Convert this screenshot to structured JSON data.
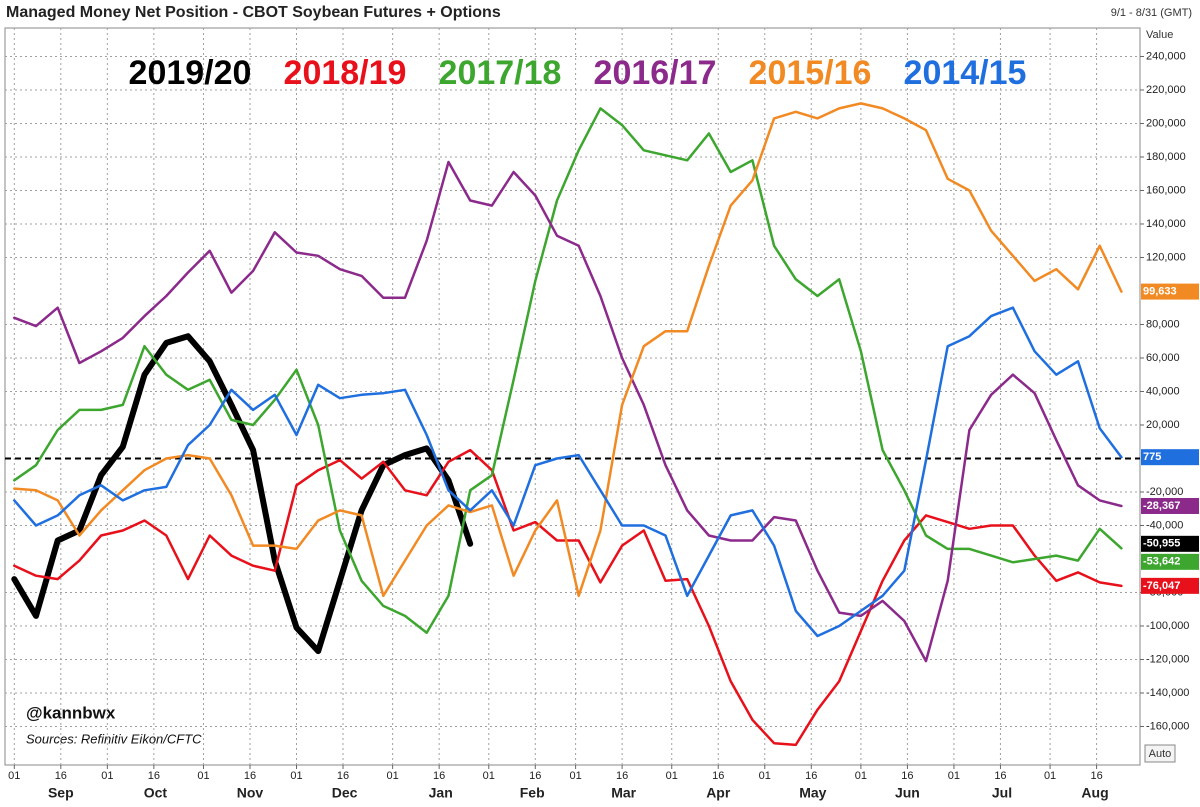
{
  "chart_data": {
    "type": "line",
    "title": "Managed Money Net Position - CBOT Soybean Futures + Options",
    "date_range": "9/1 - 8/31 (GMT)",
    "y_axis_label": "Value",
    "auto_button": "Auto",
    "handle": "@kannbwx",
    "source": "Sources: Refinitiv Eikon/CFTC",
    "xlim": [
      -3,
      363
    ],
    "ylim": [
      -183000,
      257000
    ],
    "reference_line": 0,
    "grid": true,
    "months": [
      "Sep",
      "Oct",
      "Nov",
      "Dec",
      "Jan",
      "Feb",
      "Mar",
      "Apr",
      "May",
      "Jun",
      "Jul",
      "Aug"
    ],
    "xticks": [
      {
        "value": 0,
        "label": "01"
      },
      {
        "value": 15,
        "label": "16"
      },
      {
        "value": 30,
        "label": "01"
      },
      {
        "value": 45,
        "label": "16"
      },
      {
        "value": 61,
        "label": "01"
      },
      {
        "value": 76,
        "label": "16"
      },
      {
        "value": 91,
        "label": "01"
      },
      {
        "value": 106,
        "label": "16"
      },
      {
        "value": 122,
        "label": "01"
      },
      {
        "value": 137,
        "label": "16"
      },
      {
        "value": 153,
        "label": "01"
      },
      {
        "value": 168,
        "label": "16"
      },
      {
        "value": 181,
        "label": "01"
      },
      {
        "value": 196,
        "label": "16"
      },
      {
        "value": 212,
        "label": "01"
      },
      {
        "value": 227,
        "label": "16"
      },
      {
        "value": 242,
        "label": "01"
      },
      {
        "value": 257,
        "label": "16"
      },
      {
        "value": 273,
        "label": "01"
      },
      {
        "value": 288,
        "label": "16"
      },
      {
        "value": 303,
        "label": "01"
      },
      {
        "value": 318,
        "label": "16"
      },
      {
        "value": 334,
        "label": "01"
      },
      {
        "value": 349,
        "label": "16"
      }
    ],
    "yticks": [
      {
        "value": 240000,
        "label": "240,000"
      },
      {
        "value": 220000,
        "label": "220,000"
      },
      {
        "value": 200000,
        "label": "200,000"
      },
      {
        "value": 180000,
        "label": "180,000"
      },
      {
        "value": 160000,
        "label": "160,000"
      },
      {
        "value": 140000,
        "label": "140,000"
      },
      {
        "value": 120000,
        "label": "120,000"
      },
      {
        "value": 80000,
        "label": "80,000"
      },
      {
        "value": 60000,
        "label": "60,000"
      },
      {
        "value": 40000,
        "label": "40,000"
      },
      {
        "value": 20000,
        "label": "20,000"
      },
      {
        "value": -20000,
        "label": "-20,000"
      },
      {
        "value": -40000,
        "label": "-40,000"
      },
      {
        "value": -80000,
        "label": "-80,000"
      },
      {
        "value": -100000,
        "label": "-100,000"
      },
      {
        "value": -120000,
        "label": "-120,000"
      },
      {
        "value": -140000,
        "label": "-140,000"
      },
      {
        "value": -160000,
        "label": "-160,000"
      }
    ],
    "x": [
      0,
      7,
      14,
      21,
      28,
      35,
      42,
      49,
      56,
      63,
      70,
      77,
      84,
      91,
      98,
      105,
      112,
      119,
      126,
      133,
      140,
      147,
      154,
      161,
      168,
      175,
      182,
      189,
      196,
      203,
      210,
      217,
      224,
      231,
      238,
      245,
      252,
      259,
      266,
      273,
      280,
      287,
      294,
      301,
      308,
      315,
      322,
      329,
      336,
      343,
      350,
      357
    ],
    "series": [
      {
        "name": "2019/20",
        "color": "#000000",
        "width": 6,
        "last_value_label": "-50,955",
        "values": [
          -72000,
          -94000,
          -49000,
          -43000,
          -10000,
          7000,
          50000,
          69000,
          73000,
          58000,
          32000,
          5000,
          -61000,
          -101000,
          -115000,
          -73000,
          -31000,
          -4000,
          2000,
          6000,
          -13000,
          -50955,
          null,
          null,
          null,
          null,
          null,
          null,
          null,
          null,
          null,
          null,
          null,
          null,
          null,
          null,
          null,
          null,
          null,
          null,
          null,
          null,
          null,
          null,
          null,
          null,
          null,
          null,
          null,
          null,
          null,
          null
        ]
      },
      {
        "name": "2018/19",
        "color": "#e8101a",
        "width": 2.5,
        "last_value_label": "-76,047",
        "values": [
          -64000,
          -70000,
          -72000,
          -61000,
          -46000,
          -43000,
          -37000,
          -46000,
          -72000,
          -46000,
          -58000,
          -64000,
          -67000,
          -16000,
          -7000,
          -1000,
          -12000,
          -2000,
          -19000,
          -22000,
          -2000,
          5000,
          -7000,
          -43000,
          -38000,
          -49000,
          -49000,
          -74000,
          -52000,
          -43000,
          -73000,
          -72000,
          -100000,
          -133000,
          -156000,
          -170000,
          -171000,
          -150000,
          -133000,
          -103000,
          -73000,
          -49000,
          -34000,
          -38000,
          -42000,
          -40000,
          -40000,
          -58000,
          -73000,
          -68000,
          -74000,
          -76047
        ]
      },
      {
        "name": "2017/18",
        "color": "#3da62f",
        "width": 2.5,
        "last_value_label": "-53,642",
        "values": [
          -13000,
          -4000,
          17000,
          29000,
          29000,
          32000,
          67000,
          50000,
          41000,
          47000,
          23000,
          20000,
          35000,
          53000,
          20000,
          -43000,
          -73000,
          -88000,
          -94000,
          -104000,
          -82000,
          -19000,
          -10000,
          47000,
          106000,
          154000,
          184000,
          209000,
          199000,
          184000,
          181000,
          178000,
          194000,
          171000,
          178000,
          127000,
          107000,
          97000,
          107000,
          64000,
          5000,
          -19000,
          -46000,
          -54000,
          -54000,
          -58000,
          -62000,
          -60000,
          -58000,
          -61000,
          -42000,
          -53642
        ]
      },
      {
        "name": "2016/17",
        "color": "#8c2a8c",
        "width": 2.5,
        "last_value_label": "-28,367",
        "values": [
          84000,
          79000,
          90000,
          57000,
          64000,
          72000,
          85000,
          97000,
          111000,
          124000,
          99000,
          112000,
          135000,
          123000,
          121000,
          113000,
          109000,
          96000,
          96000,
          130000,
          177000,
          154000,
          151000,
          171000,
          157000,
          133000,
          127000,
          97000,
          60000,
          32000,
          -4000,
          -31000,
          -46000,
          -49000,
          -49000,
          -35000,
          -37000,
          -67000,
          -92000,
          -94000,
          -85000,
          -97000,
          -121000,
          -73000,
          17000,
          38000,
          50000,
          39000,
          11000,
          -16000,
          -25000,
          -28367
        ]
      },
      {
        "name": "2015/16",
        "color": "#f28a24",
        "width": 2.5,
        "last_value_label": "99,633",
        "values": [
          -18000,
          -19000,
          -25000,
          -46000,
          -31000,
          -19000,
          -7000,
          0,
          2000,
          0,
          -22000,
          -52000,
          -52000,
          -54000,
          -37000,
          -31000,
          -34000,
          -82000,
          -61000,
          -40000,
          -28000,
          -32000,
          -28000,
          -70000,
          -43000,
          -25000,
          -82000,
          -43000,
          32000,
          67000,
          76000,
          76000,
          115000,
          151000,
          166000,
          203000,
          207000,
          203000,
          209000,
          212000,
          209000,
          203000,
          196000,
          167000,
          160000,
          136000,
          121000,
          106000,
          113000,
          101000,
          127000,
          99633
        ]
      },
      {
        "name": "2014/15",
        "color": "#1f6fdf",
        "width": 2.5,
        "last_value_label": "775",
        "values": [
          -25000,
          -40000,
          -34000,
          -22000,
          -16000,
          -25000,
          -19000,
          -17000,
          8000,
          20000,
          41000,
          29000,
          38000,
          14000,
          44000,
          36000,
          38000,
          39000,
          41000,
          14000,
          -19000,
          -31000,
          -19000,
          -40000,
          -4000,
          0,
          2000,
          -19000,
          -40000,
          -40000,
          -46000,
          -82000,
          -58000,
          -34000,
          -31000,
          -52000,
          -91000,
          -106000,
          -100000,
          -91000,
          -82000,
          -67000,
          -1000,
          67000,
          73000,
          85000,
          90000,
          64000,
          50000,
          58000,
          18000,
          775
        ]
      }
    ]
  }
}
